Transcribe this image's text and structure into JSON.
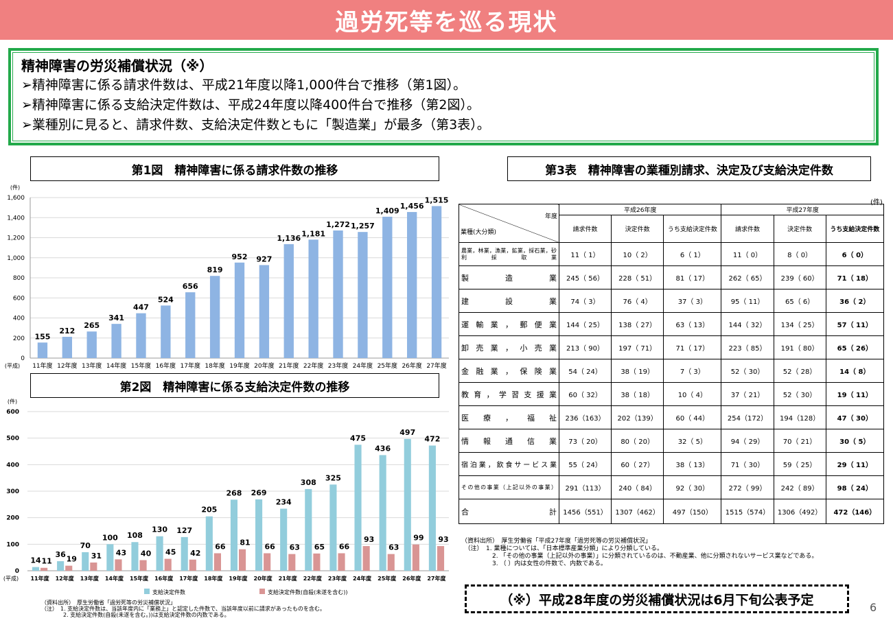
{
  "banner": {
    "title": "過労死等を巡る現状"
  },
  "summary": {
    "title": "精神障害の労災補償状況（※）",
    "bullets": [
      "➢精神障害に係る請求件数は、平成21年度以降1,000件台で推移（第1図）。",
      "➢精神障害に係る支給決定件数は、平成24年度以降400件台で推移（第2図）。",
      "➢業種別に見ると、請求件数、支給決定件数ともに「製造業」が最多（第3表）。"
    ]
  },
  "fig1": {
    "caption": "第1図　精神障害に係る請求件数の推移",
    "chart_data": {
      "type": "bar",
      "unit": "(件)",
      "xprefix": "(平成)",
      "categories": [
        "11年度",
        "12年度",
        "13年度",
        "14年度",
        "15年度",
        "16年度",
        "17年度",
        "18年度",
        "19年度",
        "20年度",
        "21年度",
        "22年度",
        "23年度",
        "24年度",
        "25年度",
        "26年度",
        "27年度"
      ],
      "values": [
        155,
        212,
        265,
        341,
        447,
        524,
        656,
        819,
        952,
        927,
        1136,
        1181,
        1272,
        1257,
        1409,
        1456,
        1515
      ],
      "value_labels": [
        "155",
        "212",
        "265",
        "341",
        "447",
        "524",
        "656",
        "819",
        "952",
        "927",
        "1,136",
        "1,181",
        "1,272",
        "1,257",
        "1,409",
        "1,456",
        "1,515"
      ],
      "ylim": [
        0,
        1600
      ],
      "yticks": [
        "0",
        "200",
        "400",
        "600",
        "800",
        "1,000",
        "1,200",
        "1,400",
        "1,600"
      ],
      "bar_color": "#8eb4e3",
      "grid": true
    }
  },
  "fig2": {
    "caption": "第2図　精神障害に係る支給決定件数の推移",
    "chart_data": {
      "type": "bar",
      "unit": "(件)",
      "xprefix": "(平成)",
      "categories": [
        "11年度",
        "12年度",
        "13年度",
        "14年度",
        "15年度",
        "16年度",
        "17年度",
        "18年度",
        "19年度",
        "20年度",
        "21年度",
        "22年度",
        "23年度",
        "24年度",
        "25年度",
        "26年度",
        "27年度"
      ],
      "series": [
        {
          "name": "支給決定件数",
          "values": [
            14,
            36,
            70,
            100,
            108,
            130,
            127,
            205,
            268,
            269,
            234,
            308,
            325,
            475,
            436,
            497,
            472
          ],
          "color": "#92cddc"
        },
        {
          "name": "支給決定件数(自殺(未遂を含む))",
          "values": [
            11,
            19,
            31,
            43,
            40,
            45,
            42,
            66,
            81,
            66,
            63,
            65,
            66,
            93,
            63,
            99,
            93
          ],
          "color": "#d99594"
        }
      ],
      "ylim": [
        0,
        600
      ],
      "yticks": [
        "0",
        "100",
        "200",
        "300",
        "400",
        "500",
        "600"
      ],
      "grid": true
    },
    "notes": "（資料出所）　厚生労働省「過労死等の労災補償状況」\n（注）　1. 支給決定件数は、当該年度内に「業務上」と認定した件数で、当該年度以前に請求があったものを含む。\n　　　　2. 支給決定件数(自殺(未遂を含む。))は支給決定件数の内数である。"
  },
  "table3": {
    "caption": "第3表　精神障害の業種別請求、決定及び支給決定件数",
    "unit": "(件)",
    "corner_year": "年度",
    "corner_industry": "業種(大分類)",
    "years": [
      "平成26年度",
      "平成27年度"
    ],
    "subheads": [
      "請求件数",
      "決定件数",
      "うち支給決定件数"
    ],
    "rows": [
      {
        "cat": "農業，林業，漁業，鉱業，採石業，砂利採取業",
        "v": [
          "11（ 1）",
          "10（ 2）",
          "6（ 1）",
          "11（ 0）",
          "8（ 0）",
          "6（ 0）"
        ]
      },
      {
        "cat": "製造業",
        "v": [
          "245（ 56）",
          "228（ 51）",
          "81（ 17）",
          "262（ 65）",
          "239（ 60）",
          "71（ 18）"
        ]
      },
      {
        "cat": "建設業",
        "v": [
          "74（ 3）",
          "76（ 4）",
          "37（ 3）",
          "95（ 11）",
          "65（ 6）",
          "36（ 2）"
        ]
      },
      {
        "cat": "運輸業，郵便業",
        "v": [
          "144（ 25）",
          "138（ 27）",
          "63（ 13）",
          "144（ 32）",
          "134（ 25）",
          "57（ 11）"
        ]
      },
      {
        "cat": "卸売業，小売業",
        "v": [
          "213（ 90）",
          "197（ 71）",
          "71（ 17）",
          "223（ 85）",
          "191（ 80）",
          "65（ 26）"
        ]
      },
      {
        "cat": "金融業，保険業",
        "v": [
          "54（ 24）",
          "38（ 19）",
          "7（ 3）",
          "52（ 30）",
          "52（ 28）",
          "14（ 8）"
        ]
      },
      {
        "cat": "教育，学習支援業",
        "v": [
          "60（ 32）",
          "38（ 18）",
          "10（ 4）",
          "37（ 21）",
          "52（ 30）",
          "19（ 11）"
        ]
      },
      {
        "cat": "医療，福祉",
        "v": [
          "236（163）",
          "202（139）",
          "60（ 44）",
          "254（172）",
          "194（128）",
          "47（ 30）"
        ]
      },
      {
        "cat": "情報通信業",
        "v": [
          "73（ 20）",
          "80（ 20）",
          "32（ 5）",
          "94（ 29）",
          "70（ 21）",
          "30（ 5）"
        ]
      },
      {
        "cat": "宿泊業，飲食サービス業",
        "v": [
          "55（ 24）",
          "60（ 27）",
          "38（ 13）",
          "71（ 30）",
          "59（ 25）",
          "29（ 11）"
        ]
      },
      {
        "cat": "その他の事業（上記以外の事業）",
        "v": [
          "291（113）",
          "240（ 84）",
          "92（ 30）",
          "272（ 99）",
          "242（ 89）",
          "98（ 24）"
        ]
      },
      {
        "cat": "合計",
        "v": [
          "1456（551）",
          "1307（462）",
          "497（150）",
          "1515（574）",
          "1306（492）",
          "472（146）"
        ]
      }
    ],
    "notes": "（資料出所）　厚生労働省「平成27年度「過労死等の労災補償状況」\n　（注）　1. 業種については、「日本標準産業分類」により分類している。\n　　　　　2. 「その他の事業（上記以外の事業）」に分類されているのは、不動産業、他に分類されないサービス業などである。\n　　　　　3. （ ）内は女性の件数で、内数である。"
  },
  "announcement": "（※）平成28年度の労災補償状況は6月下旬公表予定",
  "page_number": "6"
}
